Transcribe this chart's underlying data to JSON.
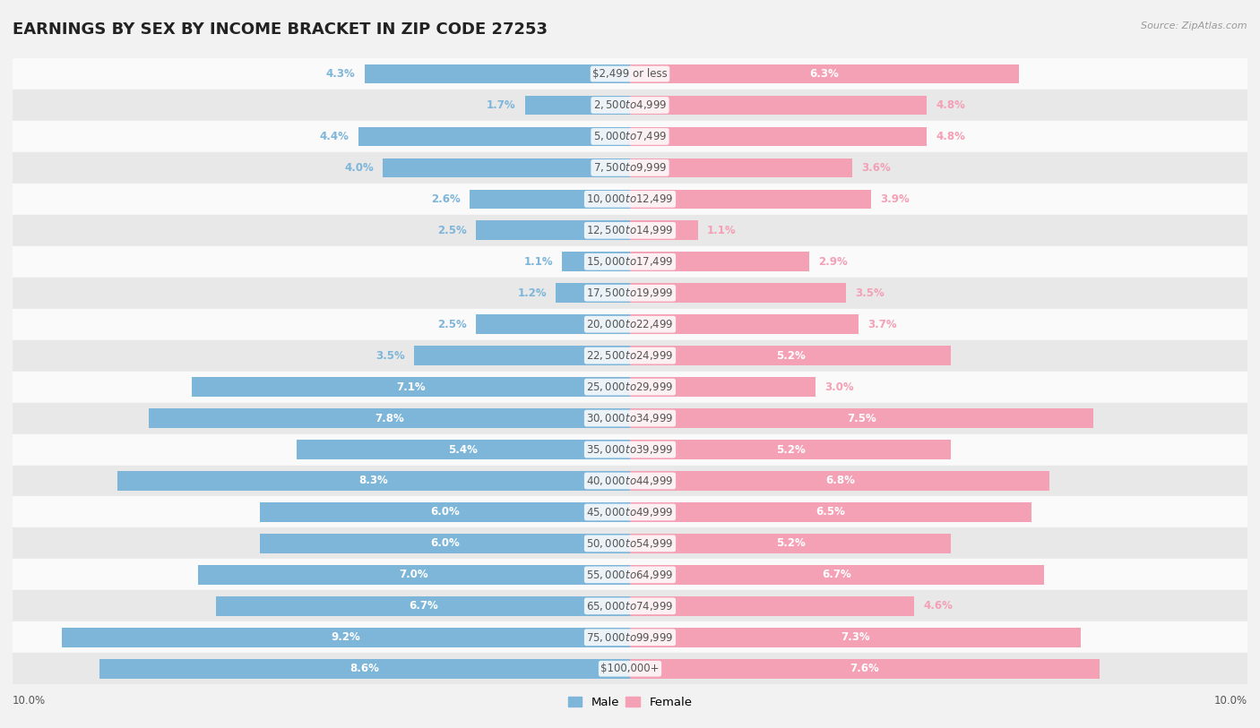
{
  "title": "EARNINGS BY SEX BY INCOME BRACKET IN ZIP CODE 27253",
  "source": "Source: ZipAtlas.com",
  "categories": [
    "$2,499 or less",
    "$2,500 to $4,999",
    "$5,000 to $7,499",
    "$7,500 to $9,999",
    "$10,000 to $12,499",
    "$12,500 to $14,999",
    "$15,000 to $17,499",
    "$17,500 to $19,999",
    "$20,000 to $22,499",
    "$22,500 to $24,999",
    "$25,000 to $29,999",
    "$30,000 to $34,999",
    "$35,000 to $39,999",
    "$40,000 to $44,999",
    "$45,000 to $49,999",
    "$50,000 to $54,999",
    "$55,000 to $64,999",
    "$65,000 to $74,999",
    "$75,000 to $99,999",
    "$100,000+"
  ],
  "male_values": [
    4.3,
    1.7,
    4.4,
    4.0,
    2.6,
    2.5,
    1.1,
    1.2,
    2.5,
    3.5,
    7.1,
    7.8,
    5.4,
    8.3,
    6.0,
    6.0,
    7.0,
    6.7,
    9.2,
    8.6
  ],
  "female_values": [
    6.3,
    4.8,
    4.8,
    3.6,
    3.9,
    1.1,
    2.9,
    3.5,
    3.7,
    5.2,
    3.0,
    7.5,
    5.2,
    6.8,
    6.5,
    5.2,
    6.7,
    4.6,
    7.3,
    7.6
  ],
  "male_color": "#7EB6D9",
  "female_color": "#F4A0B5",
  "male_inside_label_color": "#ffffff",
  "female_inside_label_color": "#ffffff",
  "male_outside_label_color": "#7EB6D9",
  "female_outside_label_color": "#F4A0B5",
  "background_color": "#f2f2f2",
  "row_bg_light": "#fafafa",
  "row_bg_dark": "#e8e8e8",
  "xlim": 10.0,
  "inside_threshold": 5.0,
  "title_fontsize": 13,
  "value_fontsize": 8.5,
  "category_fontsize": 8.5,
  "legend_fontsize": 9.5
}
